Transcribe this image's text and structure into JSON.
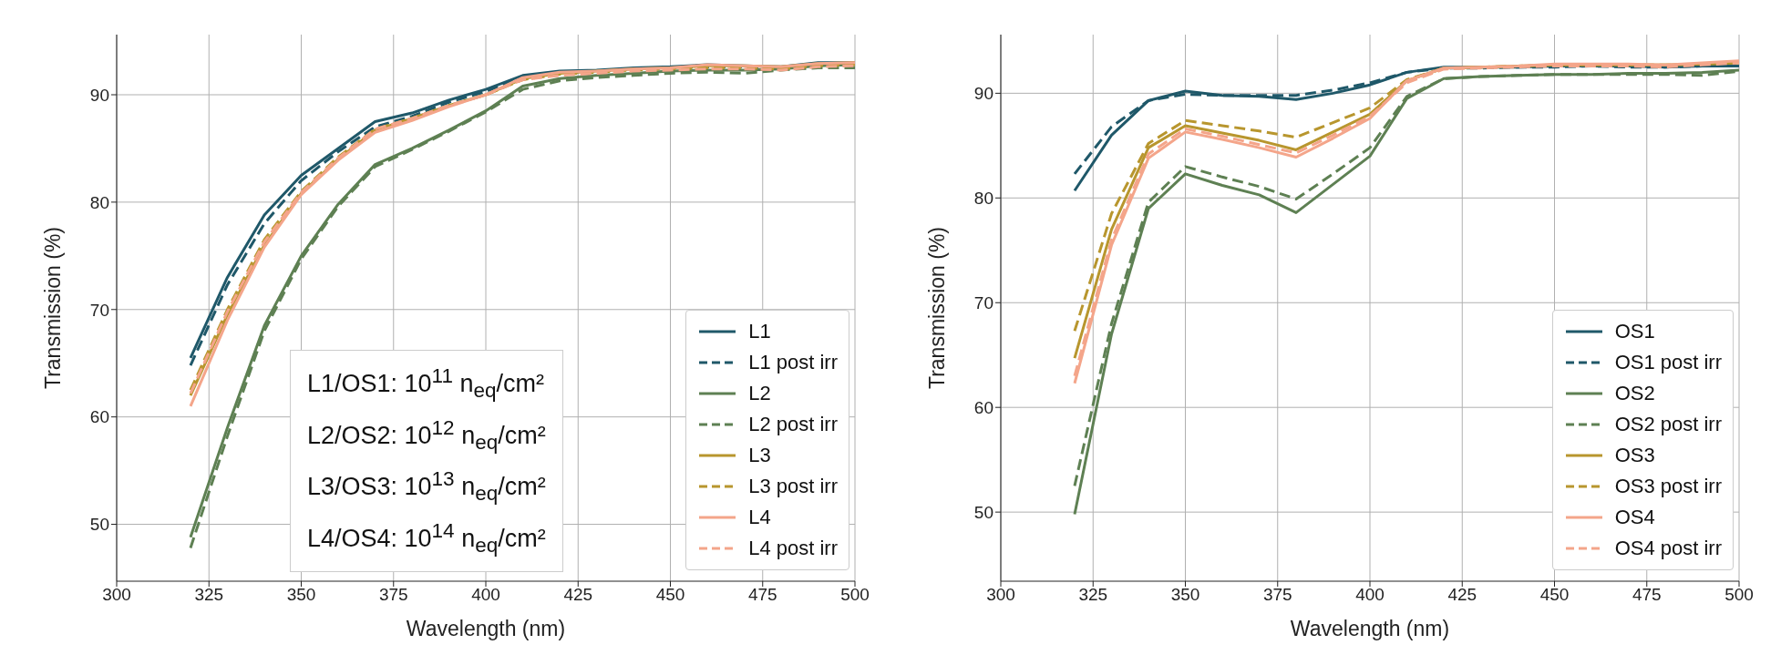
{
  "chart_data": [
    {
      "type": "line",
      "xlabel": "Wavelength (nm)",
      "ylabel": "Transmission (%)",
      "x": [
        320,
        330,
        340,
        350,
        360,
        370,
        380,
        390,
        400,
        410,
        420,
        430,
        440,
        450,
        460,
        470,
        480,
        490,
        500
      ],
      "xlim": [
        300,
        500
      ],
      "xticks": [
        300,
        325,
        350,
        375,
        400,
        425,
        450,
        475,
        500
      ],
      "ylim": [
        44.7,
        95.6
      ],
      "yticks": [
        50,
        60,
        70,
        80,
        90
      ],
      "grid": true,
      "legend": "bottom right",
      "annotations": [
        "L1/OS1: 10$^{11}$ n$_{eq}$/cm²",
        "L2/OS2: 10$^{12}$ n$_{eq}$/cm²",
        "L3/OS3: 10$^{13}$ n$_{eq}$/cm²",
        "L4/OS4: 10$^{14}$ n$_{eq}$/cm²"
      ],
      "series": [
        {
          "name": "L1",
          "color": "#1f5869",
          "line_style": "solid",
          "values": [
            65.5,
            73,
            78.8,
            82.5,
            85,
            87.5,
            88.3,
            89.5,
            90.5,
            91.8,
            92.2,
            92.3,
            92.5,
            92.6,
            92.8,
            92.7,
            92.6,
            93,
            93
          ]
        },
        {
          "name": "L1 post irr",
          "color": "#1f5869",
          "line_style": "dashed",
          "values": [
            64.8,
            72.3,
            78,
            82,
            84.7,
            87,
            88,
            89.3,
            90.3,
            91.6,
            92,
            92.2,
            92.4,
            92.5,
            92.6,
            92.6,
            92.5,
            92.8,
            92.9
          ]
        },
        {
          "name": "L2",
          "color": "#5e8053",
          "line_style": "solid",
          "values": [
            48.8,
            59,
            68.5,
            75,
            79.8,
            83.5,
            85,
            86.7,
            88.5,
            90.8,
            91.5,
            91.8,
            92,
            92.2,
            92.3,
            92.3,
            92.4,
            92.7,
            92.8
          ]
        },
        {
          "name": "L2 post irr",
          "color": "#5e8053",
          "line_style": "dashed",
          "values": [
            47.8,
            58.2,
            68,
            74.7,
            79.6,
            83.3,
            84.9,
            86.6,
            88.4,
            90.5,
            91.3,
            91.6,
            91.8,
            92,
            92.1,
            92,
            92.3,
            92.5,
            92.5
          ]
        },
        {
          "name": "L3",
          "color": "#b8962e",
          "line_style": "solid",
          "values": [
            62,
            69.5,
            76,
            80.8,
            84,
            86.7,
            87.8,
            89,
            90,
            91.5,
            92,
            92.2,
            92.4,
            92.5,
            92.7,
            92.7,
            92.6,
            92.9,
            93
          ]
        },
        {
          "name": "L3 post irr",
          "color": "#b8962e",
          "line_style": "dashed",
          "values": [
            62.5,
            70,
            76.5,
            81,
            84.2,
            86.8,
            87.8,
            89,
            90,
            91.4,
            91.9,
            92.1,
            92.3,
            92.4,
            92.5,
            92.5,
            92.4,
            92.7,
            92.8
          ]
        },
        {
          "name": "L4",
          "color": "#f4a58a",
          "line_style": "solid",
          "values": [
            61,
            69,
            75.8,
            80.7,
            83.9,
            86.5,
            87.6,
            88.9,
            90,
            91.6,
            92.1,
            92.2,
            92.4,
            92.5,
            92.8,
            92.7,
            92.6,
            92.9,
            93
          ]
        },
        {
          "name": "L4 post irr",
          "color": "#f4a58a",
          "line_style": "dashed",
          "values": [
            62.2,
            69.8,
            76.3,
            80.9,
            84.1,
            86.8,
            87.8,
            89,
            90,
            91.4,
            91.8,
            92,
            92.2,
            92.3,
            92.4,
            92.4,
            92.3,
            92.6,
            92.7
          ]
        }
      ]
    },
    {
      "type": "line",
      "xlabel": "Wavelength (nm)",
      "ylabel": "Transmission (%)",
      "x": [
        320,
        330,
        340,
        350,
        360,
        370,
        380,
        390,
        400,
        410,
        420,
        430,
        440,
        450,
        460,
        470,
        480,
        490,
        500
      ],
      "xlim": [
        300,
        500
      ],
      "xticks": [
        300,
        325,
        350,
        375,
        400,
        425,
        450,
        475,
        500
      ],
      "ylim": [
        43.4,
        95.6
      ],
      "yticks": [
        50,
        60,
        70,
        80,
        90
      ],
      "grid": true,
      "legend": "bottom right",
      "series": [
        {
          "name": "OS1",
          "color": "#1f5869",
          "line_style": "solid",
          "values": [
            80.7,
            86,
            89.3,
            90.2,
            89.8,
            89.7,
            89.4,
            90,
            90.8,
            92,
            92.5,
            92.5,
            92.5,
            92.6,
            92.6,
            92.6,
            92.5,
            92.6,
            92.6
          ]
        },
        {
          "name": "OS1 post irr",
          "color": "#1f5869",
          "line_style": "dashed",
          "values": [
            82.3,
            86.8,
            89.3,
            89.9,
            89.8,
            89.8,
            89.8,
            90.3,
            91,
            92,
            92.4,
            92.4,
            92.5,
            92.5,
            92.6,
            92.5,
            92.5,
            92.6,
            92.6
          ]
        },
        {
          "name": "OS2",
          "color": "#5e8053",
          "line_style": "solid",
          "values": [
            49.8,
            67,
            79,
            82.3,
            81.2,
            80.3,
            78.6,
            81.3,
            84,
            89.5,
            91.4,
            91.6,
            91.7,
            91.8,
            91.8,
            91.9,
            91.9,
            92,
            92.2
          ]
        },
        {
          "name": "OS2 post irr",
          "color": "#5e8053",
          "line_style": "dashed",
          "values": [
            52.5,
            68,
            79.6,
            83,
            82,
            81.1,
            79.9,
            82.3,
            84.8,
            89.7,
            91.4,
            91.6,
            91.7,
            91.8,
            91.8,
            91.8,
            91.8,
            91.7,
            92.1
          ]
        },
        {
          "name": "OS3",
          "color": "#b8962e",
          "line_style": "solid",
          "values": [
            64.7,
            77,
            84.8,
            86.9,
            86.2,
            85.5,
            84.6,
            86.3,
            88,
            91.2,
            92.4,
            92.5,
            92.6,
            92.7,
            92.7,
            92.7,
            92.7,
            92.8,
            92.9
          ]
        },
        {
          "name": "OS3 post irr",
          "color": "#b8962e",
          "line_style": "dashed",
          "values": [
            67.3,
            78.5,
            85.2,
            87.4,
            86.9,
            86.4,
            85.8,
            87.2,
            88.6,
            91.3,
            92.4,
            92.5,
            92.6,
            92.7,
            92.7,
            92.7,
            92.7,
            92.8,
            92.9
          ]
        },
        {
          "name": "OS4",
          "color": "#f4a58a",
          "line_style": "solid",
          "values": [
            62.3,
            75.5,
            83.8,
            86.3,
            85.6,
            84.8,
            83.9,
            85.7,
            87.6,
            91.2,
            92.4,
            92.5,
            92.6,
            92.8,
            92.8,
            92.8,
            92.7,
            92.9,
            93.1
          ]
        },
        {
          "name": "OS4 post irr",
          "color": "#f4a58a",
          "line_style": "dashed",
          "values": [
            63,
            76,
            84.2,
            86.6,
            85.9,
            85.1,
            84.3,
            86,
            87.8,
            91,
            92.3,
            92.4,
            92.5,
            92.6,
            92.6,
            92.6,
            92.5,
            92.7,
            92.9
          ]
        }
      ]
    }
  ]
}
